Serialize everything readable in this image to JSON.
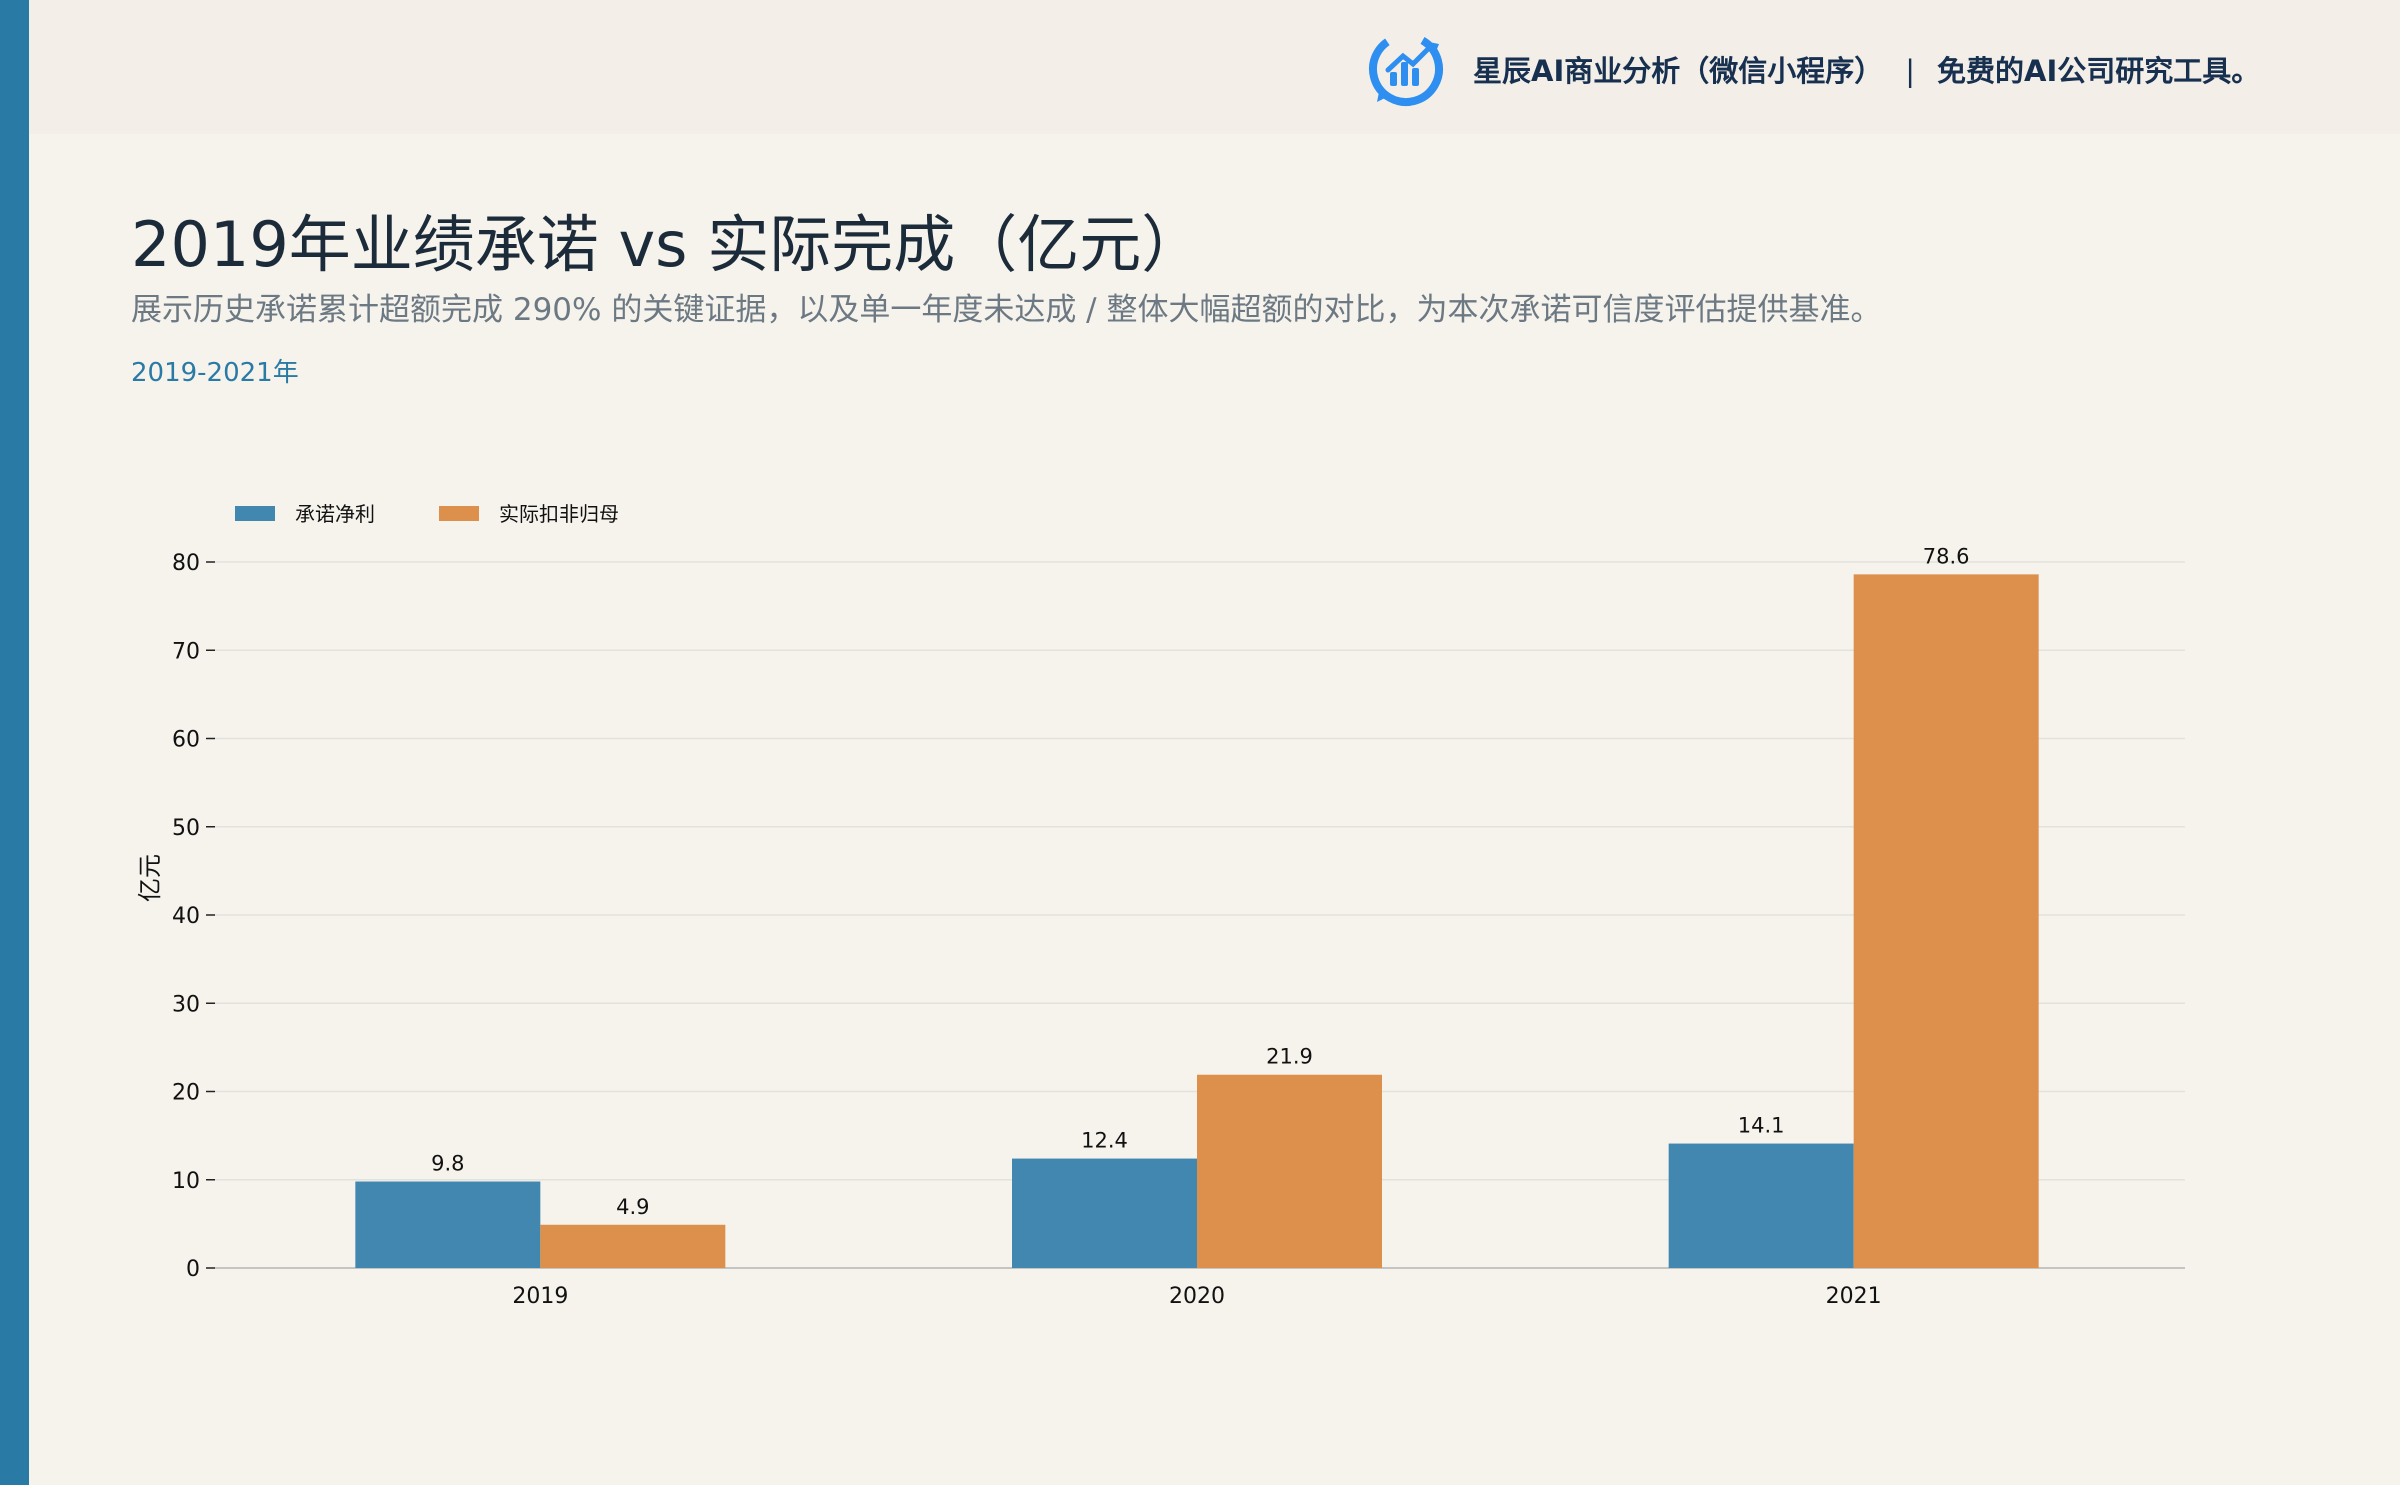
{
  "header": {
    "brand_name": "星辰AI商业分析（微信小程序）",
    "separator": "|",
    "brand_tagline": "免费的AI公司研究工具。"
  },
  "page": {
    "title": "2019年业绩承诺 vs 实际完成（亿元）",
    "subtitle": "展示历史承诺累计超额完成 290% 的关键证据，以及单一年度未达成 / 整体大幅超额的对比，为本次承诺可信度评估提供基准。",
    "period": "2019-2021年"
  },
  "colors": {
    "accent": "#2a7aa6",
    "series_committed": "#4287b0",
    "series_actual": "#dd904c"
  },
  "chart_data": {
    "type": "bar",
    "categories": [
      "2019",
      "2020",
      "2021"
    ],
    "series": [
      {
        "name": "承诺净利",
        "values": [
          9.8,
          12.4,
          14.1
        ],
        "color": "#4287b0"
      },
      {
        "name": "实际扣非归母",
        "values": [
          4.9,
          21.9,
          78.6
        ],
        "color": "#dd904c"
      }
    ],
    "ylabel": "亿元",
    "ylim": [
      0,
      80
    ],
    "yticks": [
      0,
      10,
      20,
      30,
      40,
      50,
      60,
      70,
      80
    ],
    "grid": true,
    "legend": "top-left"
  }
}
